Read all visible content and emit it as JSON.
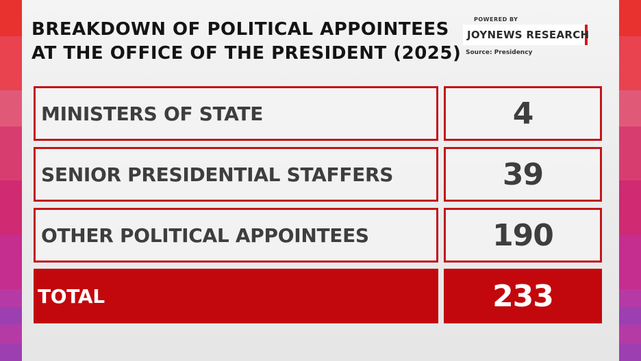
{
  "title_lines": [
    "BREAKDOWN OF POLITICAL APPOINTEES",
    "AT THE OFFICE OF THE PRESIDENT (2025)"
  ],
  "branding": {
    "powered_by": "POWERED BY",
    "name": "JOYNEWS RESEARCH",
    "source": "Source: Presidency"
  },
  "colors": {
    "accent_red": "#c2151a",
    "total_red": "#c2080c",
    "text_dark": "#3e3e3e",
    "strip_gradient": [
      "#e8322f",
      "#e8434f",
      "#e05a78",
      "#d83d70",
      "#cf2a72",
      "#c52d8e",
      "#b63aa6",
      "#9c3fb0"
    ]
  },
  "chart_data": {
    "type": "table",
    "title": "BREAKDOWN OF POLITICAL APPOINTEES AT THE OFFICE OF THE PRESIDENT (2025)",
    "categories": [
      "MINISTERS OF STATE",
      "SENIOR PRESIDENTIAL STAFFERS",
      "OTHER POLITICAL APPOINTEES"
    ],
    "values": [
      4,
      39,
      190
    ],
    "total_label": "TOTAL",
    "total_value": 233
  }
}
